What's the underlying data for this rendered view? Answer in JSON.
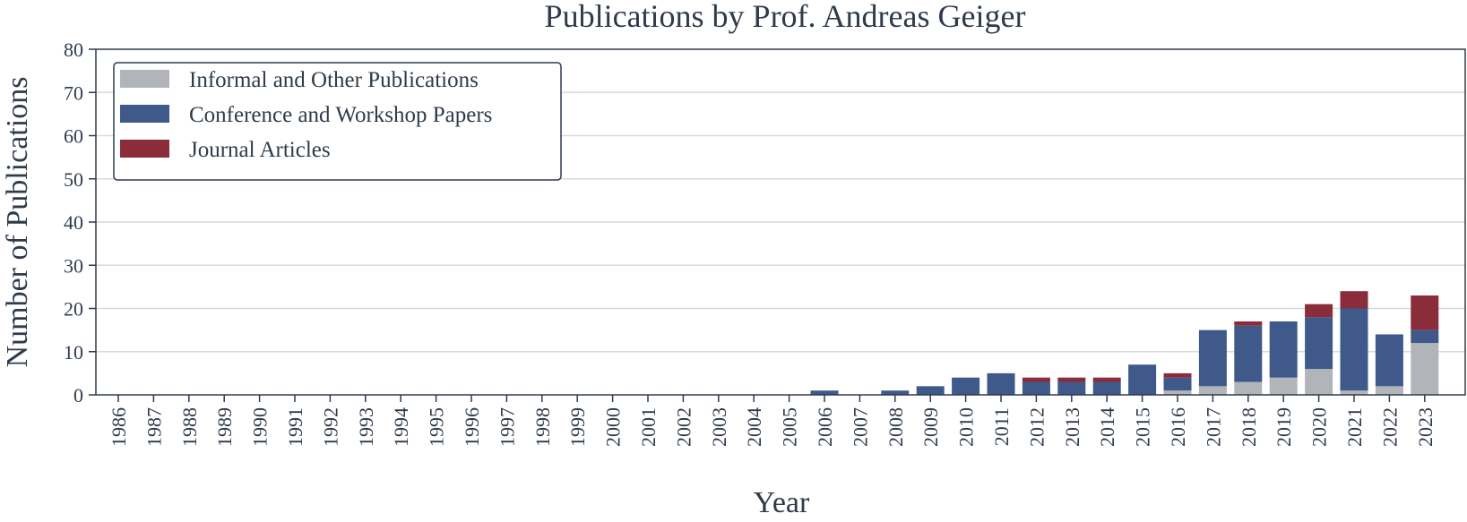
{
  "chart_data": {
    "type": "bar",
    "stacked": true,
    "title": "Publications by Prof. Andreas Geiger",
    "xlabel": "Year",
    "ylabel": "Number of Publications",
    "ylim": [
      0,
      80
    ],
    "yticks": [
      0,
      10,
      20,
      30,
      40,
      50,
      60,
      70,
      80
    ],
    "grid": "horizontal",
    "legend_position": "top-left",
    "categories": [
      "1986",
      "1987",
      "1988",
      "1989",
      "1990",
      "1991",
      "1992",
      "1993",
      "1994",
      "1995",
      "1996",
      "1997",
      "1998",
      "1999",
      "2000",
      "2001",
      "2002",
      "2003",
      "2004",
      "2005",
      "2006",
      "2007",
      "2008",
      "2009",
      "2010",
      "2011",
      "2012",
      "2013",
      "2014",
      "2015",
      "2016",
      "2017",
      "2018",
      "2019",
      "2020",
      "2021",
      "2022",
      "2023"
    ],
    "series": [
      {
        "name": "Informal and Other Publications",
        "color": "#b1b4b9",
        "values": [
          0,
          0,
          0,
          0,
          0,
          0,
          0,
          0,
          0,
          0,
          0,
          0,
          0,
          0,
          0,
          0,
          0,
          0,
          0,
          0,
          0,
          0,
          0,
          0,
          0,
          0,
          0,
          0,
          0,
          0,
          1,
          2,
          3,
          4,
          6,
          1,
          2,
          12
        ]
      },
      {
        "name": "Conference and Workshop Papers",
        "color": "#3f5a8a",
        "values": [
          0,
          0,
          0,
          0,
          0,
          0,
          0,
          0,
          0,
          0,
          0,
          0,
          0,
          0,
          0,
          0,
          0,
          0,
          0,
          0,
          1,
          0,
          1,
          2,
          4,
          5,
          3,
          3,
          3,
          7,
          3,
          13,
          13,
          13,
          12,
          19,
          12,
          3
        ]
      },
      {
        "name": "Journal Articles",
        "color": "#8b2c3b",
        "values": [
          0,
          0,
          0,
          0,
          0,
          0,
          0,
          0,
          0,
          0,
          0,
          0,
          0,
          0,
          0,
          0,
          0,
          0,
          0,
          0,
          0,
          0,
          0,
          0,
          0,
          0,
          1,
          1,
          1,
          0,
          1,
          0,
          1,
          0,
          3,
          4,
          0,
          8
        ]
      }
    ]
  }
}
